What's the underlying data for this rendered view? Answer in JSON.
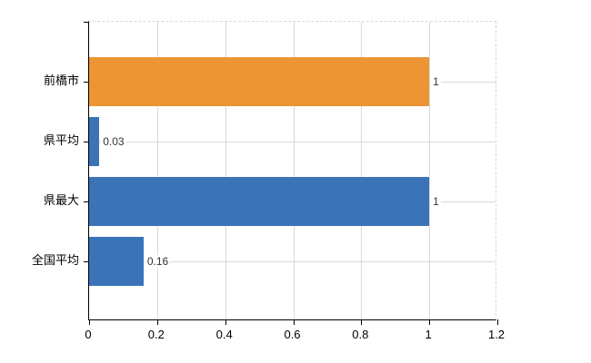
{
  "chart_data": {
    "type": "bar",
    "orientation": "horizontal",
    "title": "",
    "xlabel": "",
    "ylabel": "",
    "categories": [
      "前橋市",
      "県平均",
      "県最大",
      "全国平均"
    ],
    "values": [
      1,
      0.03,
      1,
      0.16
    ],
    "value_labels": [
      "1",
      "0.03",
      "1",
      "0.16"
    ],
    "bar_colors": [
      "#ED9434",
      "#3B73B8",
      "#3B73B8",
      "#3B73B8"
    ],
    "xlim": [
      0,
      1.2
    ],
    "xticks": [
      0,
      0.2,
      0.4,
      0.6,
      0.8,
      1,
      1.2
    ],
    "xtick_labels": [
      "0",
      "0.2",
      "0.4",
      "0.6",
      "0.8",
      "1",
      "1.2"
    ],
    "grid": true,
    "legend_position": "none"
  },
  "colors": {
    "background": "#FFFFFF",
    "axis": "#000000",
    "gridline": "#D9D9D9",
    "value_label_text": "#333333",
    "category_label_text": "#000000"
  }
}
